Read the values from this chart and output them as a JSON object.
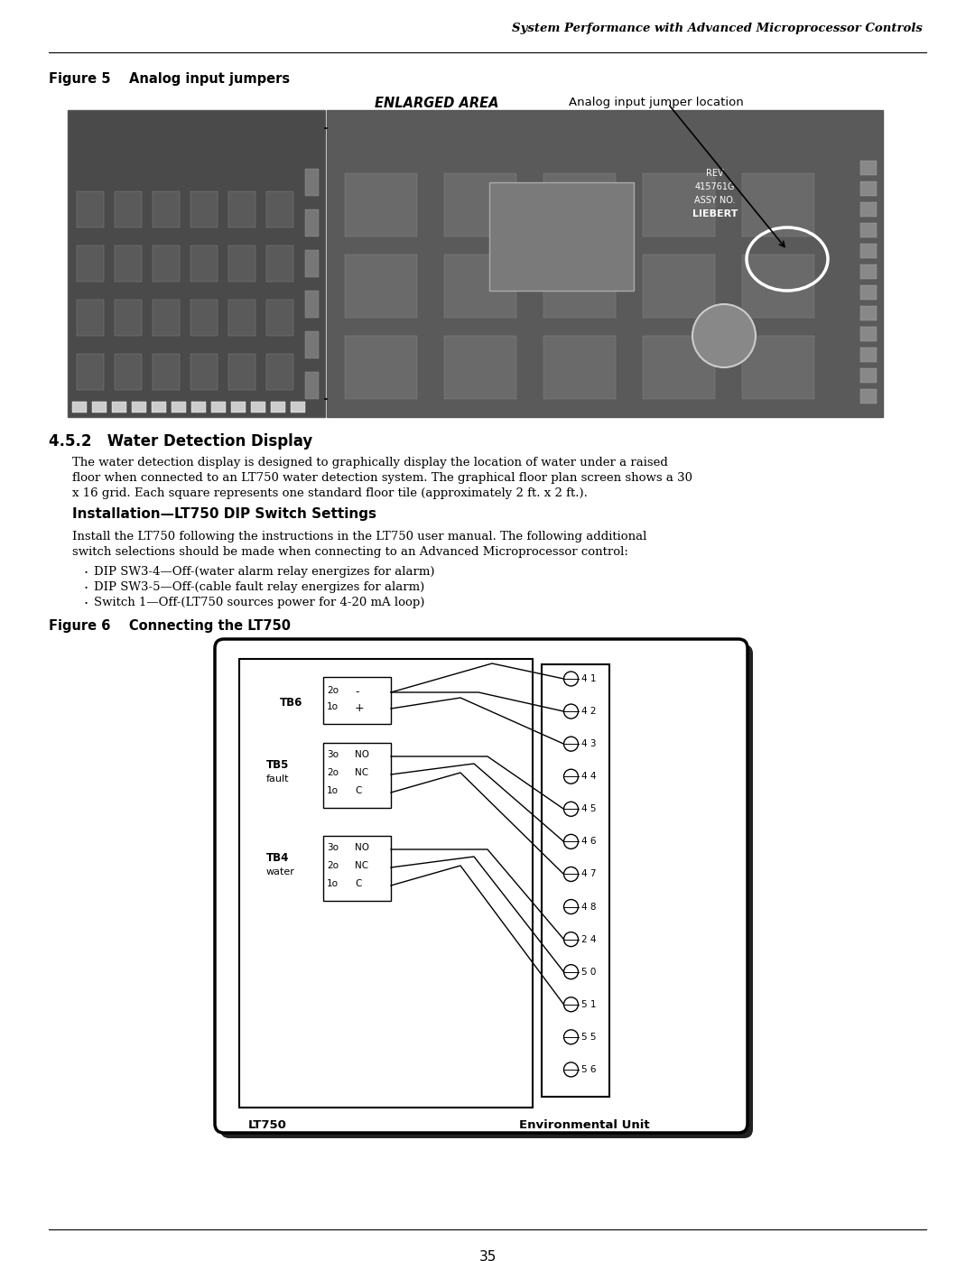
{
  "page_width": 10.8,
  "page_height": 13.97,
  "bg_color": "#ffffff",
  "header_text": "System Performance with Advanced Microprocessor Controls",
  "figure5_label": "Figure 5    Analog input jumpers",
  "enlarged_area_label": "ENLARGED AREA",
  "analog_jumper_label": "Analog input jumper location",
  "section_heading": "4.5.2   Water Detection Display",
  "para1_lines": [
    "The water detection display is designed to graphically display the location of water under a raised",
    "floor when connected to an LT750 water detection system. The graphical floor plan screen shows a 30",
    "x 16 grid. Each square represents one standard floor tile (approximately 2 ft. x 2 ft.)."
  ],
  "subheading": "Installation—LT750 DIP Switch Settings",
  "para2_lines": [
    "Install the LT750 following the instructions in the LT750 user manual. The following additional",
    "switch selections should be made when connecting to an Advanced Microprocessor control:"
  ],
  "bullets": [
    "DIP SW3-4—Off-(water alarm relay energizes for alarm)",
    "DIP SW3-5—Off-(cable fault relay energizes for alarm)",
    "Switch 1—Off-(LT750 sources power for 4-20 mA loop)"
  ],
  "figure6_label": "Figure 6    Connecting the LT750",
  "page_number": "35",
  "diagram": {
    "lt750_label": "LT750",
    "env_unit_label": "Environmental Unit",
    "right_terminals": [
      "4 1",
      "4 2",
      "4 3",
      "4 4",
      "4 5",
      "4 6",
      "4 7",
      "4 8",
      "2 4",
      "5 0",
      "5 1",
      "5 5",
      "5 6"
    ]
  }
}
